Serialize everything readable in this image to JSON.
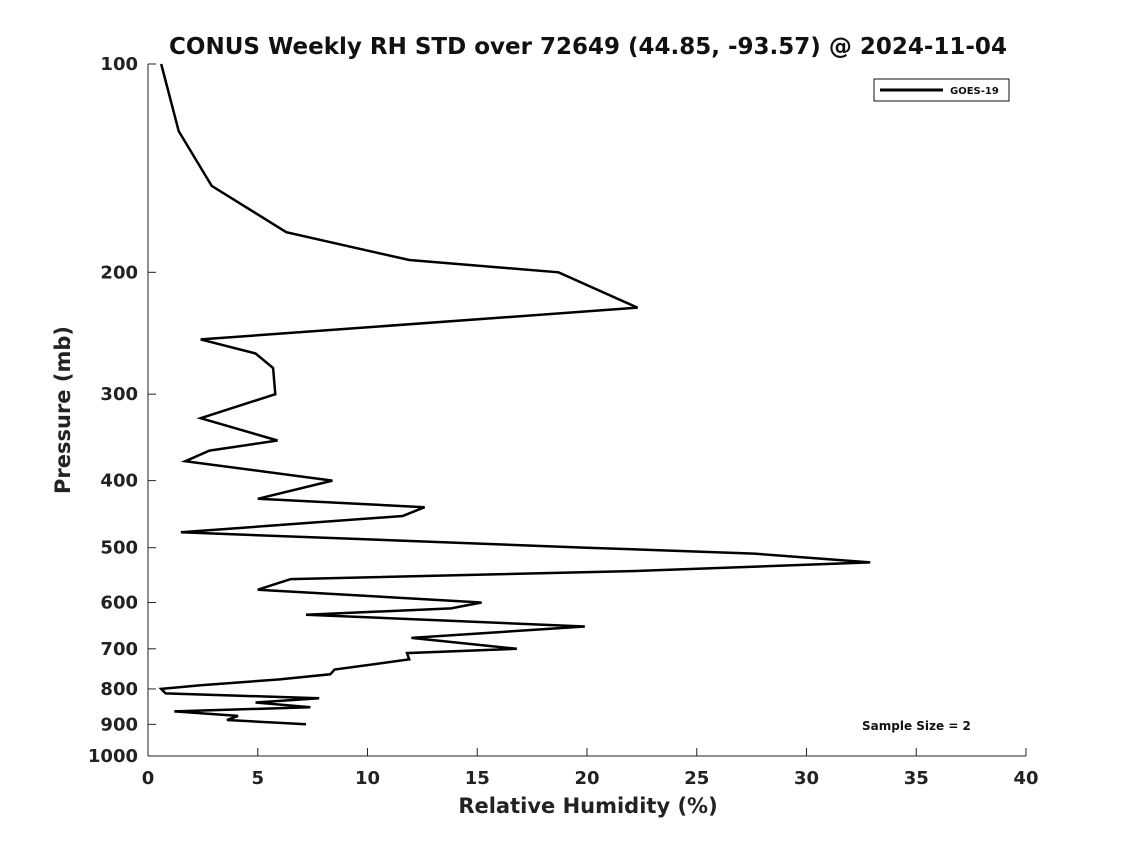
{
  "chart_data": {
    "type": "line",
    "title": "CONUS Weekly RH STD over 72649 (44.85, -93.57) @ 2024-11-04",
    "xlabel": "Relative Humidity (%)",
    "ylabel": "Pressure (mb)",
    "xlim": [
      0,
      40
    ],
    "ylim": [
      1000,
      100
    ],
    "yscale": "log",
    "y_inverted": true,
    "grid": false,
    "legend_position": "top-right",
    "x_ticks": [
      "0",
      "5",
      "10",
      "15",
      "20",
      "25",
      "30",
      "35",
      "40"
    ],
    "y_ticks": [
      "100",
      "200",
      "300",
      "400",
      "500",
      "600",
      "700",
      "800",
      "900",
      "1000"
    ],
    "annotation": "Sample Size = 2",
    "series": [
      {
        "name": "GOES-19",
        "color": "#000000",
        "points": [
          [
            0.6,
            100
          ],
          [
            1.4,
            125
          ],
          [
            2.9,
            150
          ],
          [
            6.3,
            175
          ],
          [
            11.9,
            192
          ],
          [
            18.7,
            200
          ],
          [
            22.3,
            225
          ],
          [
            2.4,
            250
          ],
          [
            4.9,
            262
          ],
          [
            5.7,
            275
          ],
          [
            5.8,
            300
          ],
          [
            2.4,
            325
          ],
          [
            5.9,
            350
          ],
          [
            2.8,
            362
          ],
          [
            1.7,
            375
          ],
          [
            8.4,
            400
          ],
          [
            5.0,
            425
          ],
          [
            12.6,
            437
          ],
          [
            11.6,
            450
          ],
          [
            1.5,
            475
          ],
          [
            20.0,
            500
          ],
          [
            27.6,
            510
          ],
          [
            32.9,
            525
          ],
          [
            22.5,
            540
          ],
          [
            6.5,
            555
          ],
          [
            5.0,
            575
          ],
          [
            15.2,
            600
          ],
          [
            13.8,
            612
          ],
          [
            7.2,
            625
          ],
          [
            19.9,
            650
          ],
          [
            12.0,
            675
          ],
          [
            16.8,
            700
          ],
          [
            11.8,
            710
          ],
          [
            11.9,
            725
          ],
          [
            8.5,
            750
          ],
          [
            8.3,
            762
          ],
          [
            6.0,
            775
          ],
          [
            2.4,
            790
          ],
          [
            0.6,
            800
          ],
          [
            0.8,
            812
          ],
          [
            7.8,
            825
          ],
          [
            4.9,
            837
          ],
          [
            7.4,
            850
          ],
          [
            1.2,
            862
          ],
          [
            4.1,
            875
          ],
          [
            3.6,
            887
          ],
          [
            7.2,
            900
          ]
        ]
      }
    ]
  }
}
